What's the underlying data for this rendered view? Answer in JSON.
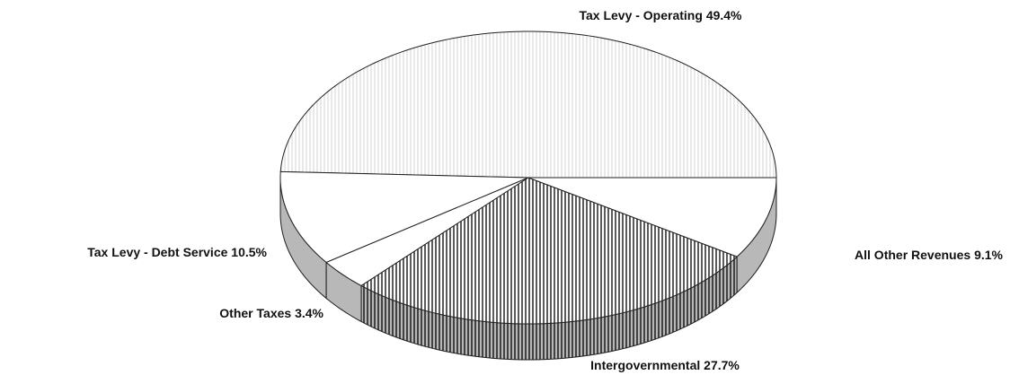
{
  "chart_data": {
    "type": "pie3d",
    "categories": [
      "Tax Levy - Operating",
      "Tax Levy - Debt Service",
      "Other Taxes",
      "Intergovernmental",
      "All Other Revenues"
    ],
    "values": [
      49.4,
      10.5,
      3.4,
      27.7,
      9.1
    ],
    "value_labels": [
      "49.4%",
      "10.5%",
      "3.4%",
      "27.7%",
      "9.1%"
    ],
    "colors": [
      "#e4e4e4",
      "#ffffff",
      "#ffffff",
      "#333333",
      "#ffffff"
    ]
  }
}
